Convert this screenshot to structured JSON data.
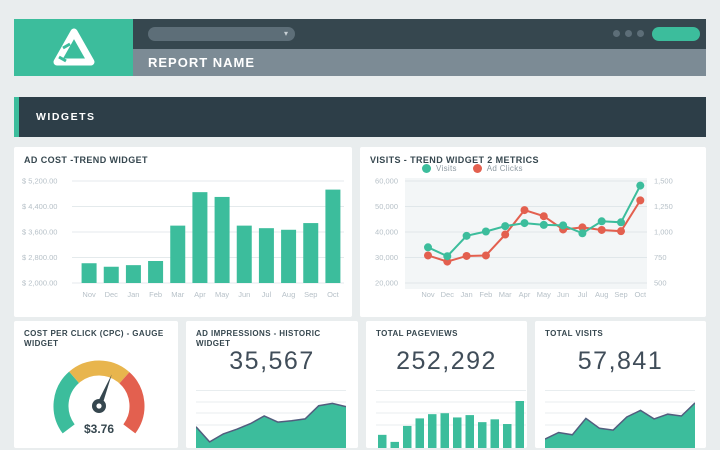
{
  "browser": {
    "report_title": "REPORT NAME",
    "url_select": {
      "chevron": "▾"
    },
    "window_dots_count": 3
  },
  "widgets_header": {
    "label": "WIDGETS"
  },
  "colors": {
    "accent_green": "#3cbd9c",
    "alert_red": "#e3604f",
    "warn_yellow": "#e8b54d",
    "dark_slate": "#36474f",
    "axis_label": "#b7c1c8",
    "grid_line": "#e4eaec",
    "mini_grid_line": "#e8edef",
    "plot_bg": "#f3f6f7",
    "plot_grid": "#e0e7ea",
    "area_stroke": "#525d7e",
    "legend_text": "#8e9aa2",
    "stat_text": "#404d59"
  },
  "charts": {
    "ad_cost": {
      "title": "AD COST -TREND WIDGET",
      "chart_data": {
        "type": "bar",
        "categories": [
          "Nov",
          "Dec",
          "Jan",
          "Feb",
          "Mar",
          "Apr",
          "May",
          "Jun",
          "Jul",
          "Aug",
          "Sep",
          "Oct"
        ],
        "values": [
          2620,
          2510,
          2560,
          2690,
          3800,
          4850,
          4700,
          3800,
          3720,
          3670,
          3880,
          4930
        ],
        "ylim": [
          2000,
          5200
        ],
        "ytick_labels": [
          "$ 5,200.00",
          "$ 4,400.00",
          "$ 3,600.00",
          "$ 2,800.00",
          "$ 2,000.00"
        ],
        "grid": true,
        "bar_color": "#3cbd9c"
      }
    },
    "visits_trend": {
      "title": "VISITS - TREND WIDGET 2 METRICS",
      "chart_data": {
        "type": "line",
        "categories": [
          "Nov",
          "Dec",
          "Jan",
          "Feb",
          "Mar",
          "Apr",
          "May",
          "Jun",
          "Jul",
          "Aug",
          "Sep",
          "Oct"
        ],
        "series": [
          {
            "name": "Visits",
            "color": "#3cbd9c",
            "axis": "left",
            "values": [
              34000,
              30500,
              38500,
              40200,
              42300,
              43500,
              42800,
              42600,
              39500,
              44200,
              43800,
              58200
            ]
          },
          {
            "name": "Ad Clicks",
            "color": "#e3604f",
            "axis": "right",
            "values": [
              770,
              710,
              765,
              770,
              975,
              1215,
              1155,
              1025,
              1045,
              1020,
              1008,
              1310
            ]
          }
        ],
        "left_ylim": [
          20000,
          60000
        ],
        "left_tick_labels": [
          "60,000",
          "50,000",
          "40,000",
          "30,000",
          "20,000"
        ],
        "right_ylim": [
          500,
          1500
        ],
        "right_tick_labels": [
          "1,500",
          "1,250",
          "1,000",
          "750",
          "500"
        ],
        "legend_position": "top",
        "grid": true
      }
    },
    "cpc_gauge": {
      "title": "COST PER CLICK (CPC) - GAUGE WIDGET",
      "value_label": "$3.76",
      "chart_data": {
        "type": "gauge",
        "value": 3.76,
        "needle_angle_from_vertical_deg": 22,
        "segments": [
          {
            "name": "low",
            "color": "#3cbd9c",
            "start_deg": 217,
            "end_deg": 131
          },
          {
            "name": "mid",
            "color": "#e8b54d",
            "start_deg": 131,
            "end_deg": 48
          },
          {
            "name": "high",
            "color": "#e3604f",
            "start_deg": 48,
            "end_deg": -37
          }
        ]
      }
    },
    "ad_impressions": {
      "title": "AD IMPRESSIONS - HISTORIC WIDGET",
      "value": "35,567",
      "chart_data": {
        "type": "area",
        "relative_values": [
          45,
          13,
          30,
          40,
          52,
          68,
          55,
          58,
          62,
          90,
          95,
          88
        ]
      }
    },
    "total_pageviews": {
      "title": "TOTAL PAGEVIEWS",
      "value": "252,292",
      "chart_data": {
        "type": "bar",
        "relative_values": [
          28,
          13,
          47,
          63,
          72,
          74,
          65,
          70,
          55,
          61,
          51,
          100
        ]
      }
    },
    "total_visits": {
      "title": "TOTAL VISITS",
      "value": "57,841",
      "chart_data": {
        "type": "area",
        "relative_values": [
          19,
          33,
          28,
          63,
          42,
          38,
          66,
          80,
          62,
          72,
          68,
          96
        ]
      }
    }
  }
}
